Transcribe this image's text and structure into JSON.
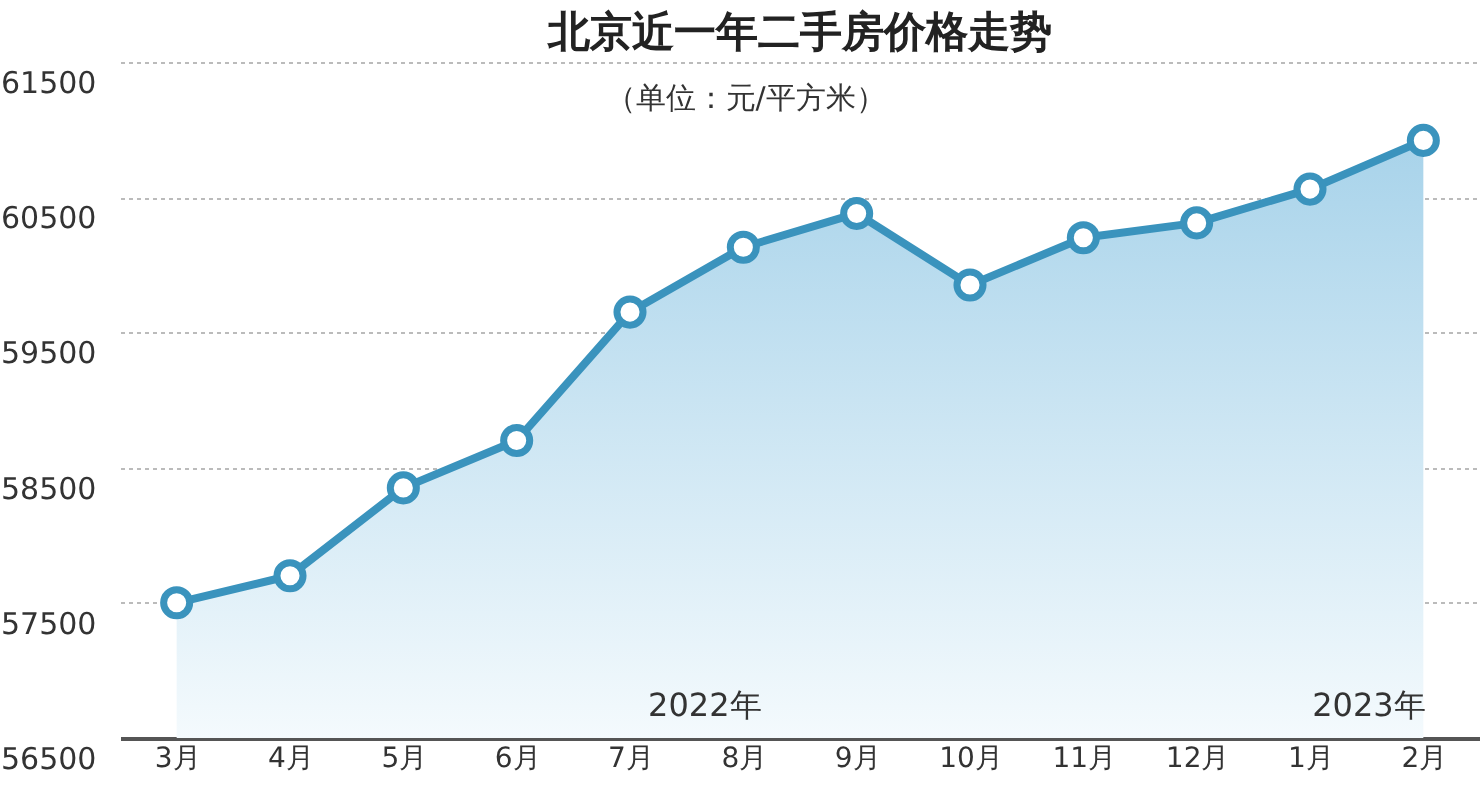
{
  "chart_data": {
    "type": "area",
    "title": "北京近一年二手房价格走势",
    "subtitle": "（单位：元/平方米）",
    "categories": [
      "3月",
      "4月",
      "5月",
      "6月",
      "7月",
      "8月",
      "9月",
      "10月",
      "11月",
      "12月",
      "1月",
      "2月"
    ],
    "series": [
      {
        "color": "#3a93bd",
        "values": [
          57500,
          57700,
          58350,
          58700,
          59650,
          60130,
          60380,
          59850,
          60200,
          60310,
          60560,
          60920
        ]
      }
    ],
    "ylim": [
      56500,
      61500
    ],
    "yticks": [
      56500,
      57500,
      58500,
      59500,
      60500,
      61500
    ],
    "grid": "y",
    "marker": "circle",
    "line_style": "solid",
    "annotations": [
      "2022年",
      "2023年"
    ]
  }
}
